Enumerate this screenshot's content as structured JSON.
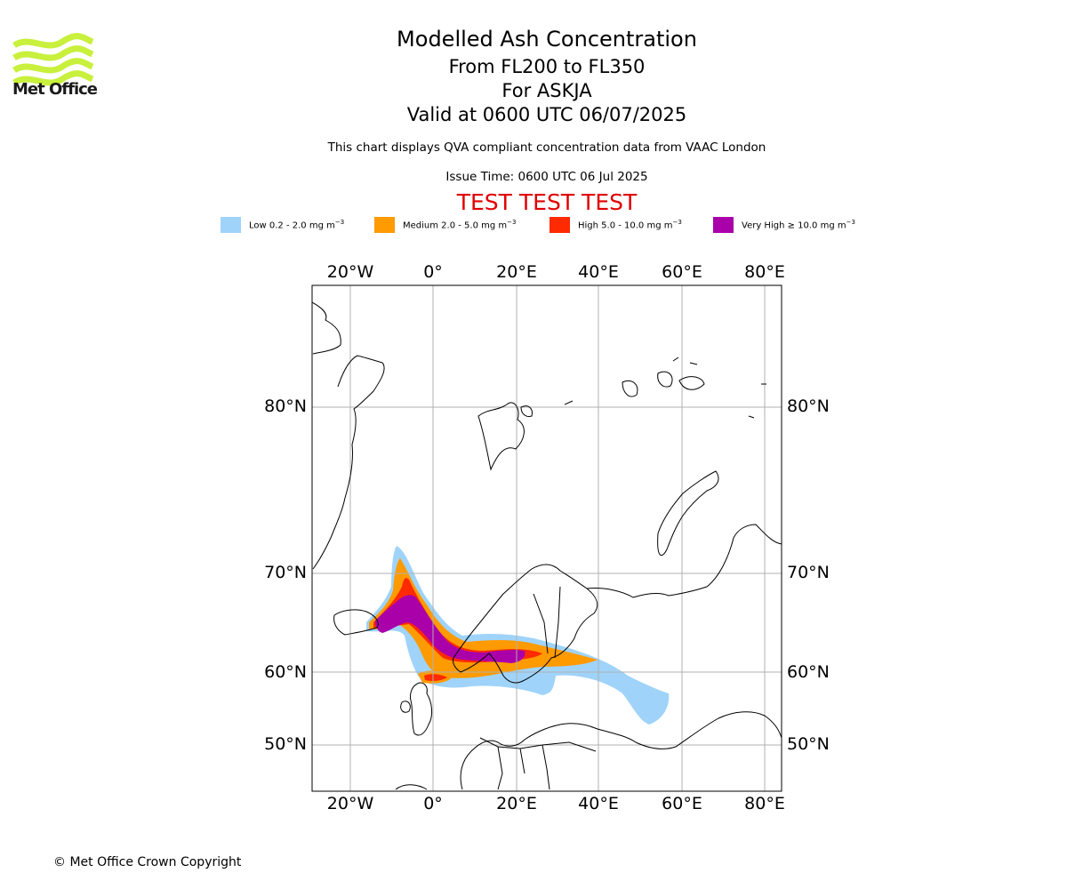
{
  "logo": {
    "text": "Met Office",
    "icon": "met-office-wave-logo",
    "color": "#c8f03c"
  },
  "title": "Modelled Ash Concentration",
  "subtitle_levels": "From FL200 to FL350",
  "subtitle_volcano": "For ASKJA",
  "subtitle_valid": "Valid at 0600 UTC 06/07/2025",
  "description": "This chart displays QVA compliant concentration data from VAAC London",
  "issue_time": "Issue Time: 0600 UTC 06 Jul 2025",
  "test_banner": "TEST TEST TEST",
  "test_color": "#e00000",
  "legend": [
    {
      "label": "Low 0.2 - 2.0 mg m",
      "unit_exp": "−3",
      "color": "#9fd3fa"
    },
    {
      "label": "Medium 2.0 - 5.0 mg m",
      "unit_exp": "−3",
      "color": "#ff9a00"
    },
    {
      "label": "High 5.0 - 10.0 mg m",
      "unit_exp": "−3",
      "color": "#ff2a00"
    },
    {
      "label": "Very High  ≥  10.0 mg m",
      "unit_exp": "−3",
      "color": "#aa00aa"
    }
  ],
  "axes": {
    "lon_labels": [
      "20°W",
      "0°",
      "20°E",
      "40°E",
      "60°E",
      "80°E"
    ],
    "lat_labels": [
      "80°N",
      "70°N",
      "60°N",
      "50°N"
    ]
  },
  "copyright": "© Met Office Crown Copyright"
}
